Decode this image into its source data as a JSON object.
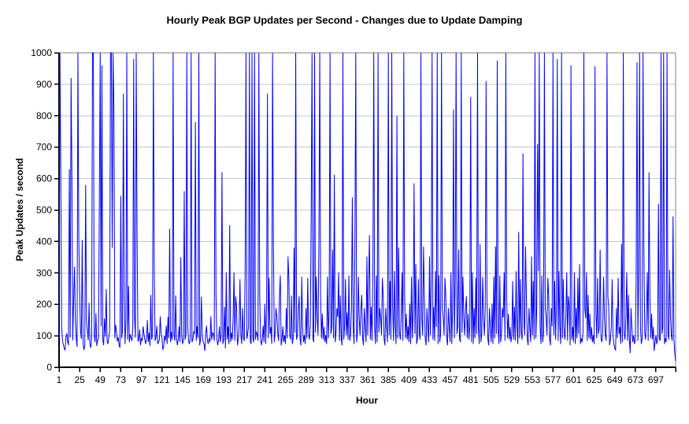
{
  "header": {
    "title": "Hourly Peak BGP Updates per Second - Changes due to Update Damping"
  },
  "chart_data": {
    "type": "line",
    "title": "Hourly Peak BGP Updates per Second - Changes due to Update Damping",
    "xlabel": "Hour",
    "ylabel": "Peak Updates / second",
    "ylim": [
      0,
      1000
    ],
    "hours": 720,
    "x_start": 1,
    "grid": "horizontal",
    "legend": "none",
    "y_ticks": [
      0,
      100,
      200,
      300,
      400,
      500,
      600,
      700,
      800,
      900,
      1000
    ],
    "x_tick_hours": [
      1,
      25,
      49,
      73,
      97,
      121,
      145,
      169,
      193,
      217,
      241,
      265,
      289,
      313,
      337,
      361,
      385,
      409,
      433,
      457,
      481,
      505,
      529,
      553,
      577,
      601,
      625,
      649,
      673,
      697
    ],
    "line_color": "#0000ff",
    "gridline_color": "#c6c6c6",
    "border_color": "#808080",
    "axis_color": "#000000",
    "background_color": "#ffffff",
    "series": [
      {
        "name": "peak-updates-per-second",
        "color": "#0000ff",
        "values": [
          90,
          1000,
          620,
          130,
          85,
          72,
          60,
          55,
          95,
          108,
          82,
          70,
          630,
          95,
          920,
          600,
          86,
          215,
          320,
          150,
          92,
          65,
          1000,
          410,
          235,
          115,
          90,
          405,
          75,
          55,
          68,
          580,
          145,
          118,
          86,
          205,
          74,
          62,
          92,
          1000,
          1000,
          105,
          80,
          172,
          68,
          86,
          92,
          540,
          1000,
          130,
          960,
          88,
          70,
          155,
          98,
          248,
          85,
          74,
          95,
          115,
          1000,
          1000,
          380,
          1000,
          815,
          92,
          135,
          112,
          82,
          96,
          70,
          62,
          545,
          92,
          118,
          870,
          225,
          74,
          148,
          1000,
          88,
          258,
          80,
          105,
          92,
          84,
          126,
          980,
          162,
          94,
          1000,
          415,
          82,
          88,
          120,
          70,
          93,
          84,
          130,
          106,
          88,
          74,
          92,
          150,
          80,
          110,
          68,
          230,
          88,
          102,
          1000,
          310,
          84,
          96,
          132,
          74,
          80,
          88,
          162,
          106,
          94,
          56,
          64,
          100,
          84,
          132,
          74,
          160,
          92,
          440,
          80,
          112,
          88,
          1000,
          106,
          84,
          228,
          92,
          70,
          88,
          130,
          80,
          350,
          102,
          74,
          86,
          560,
          88,
          106,
          1000,
          132,
          84,
          74,
          92,
          1000,
          80,
          88,
          112,
          106,
          780,
          84,
          130,
          92,
          1000,
          70,
          88,
          225,
          102,
          80,
          74,
          52,
          106,
          132,
          84,
          74,
          92,
          80,
          162,
          88,
          110,
          106,
          84,
          1000,
          232,
          92,
          70,
          88,
          130,
          80,
          102,
          620,
          74,
          88,
          192,
          60,
          302,
          88,
          130,
          74,
          452,
          80,
          110,
          88,
          156,
          302,
          84,
          226,
          192,
          70,
          88,
          128,
          280,
          102,
          74,
          188,
          92,
          84,
          315,
          1000,
          90,
          106,
          130,
          1000,
          84,
          74,
          1000,
          92,
          80,
          1000,
          88,
          112,
          106,
          84,
          1000,
          230,
          92,
          70,
          88,
          132,
          80,
          202,
          74,
          188,
          870,
          92,
          284,
          106,
          128,
          74,
          1000,
          392,
          80,
          110,
          188,
          160,
          106,
          84,
          226,
          292,
          70,
          88,
          130,
          80,
          102,
          74,
          188,
          92,
          352,
          284,
          102,
          88,
          228,
          74,
          92,
          380,
          110,
          1000,
          88,
          102,
          184,
          226,
          92,
          70,
          288,
          130,
          80,
          102,
          74,
          188,
          92,
          284,
          106,
          88,
          132,
          474,
          1000,
          92,
          80,
          1000,
          110,
          288,
          158,
          102,
          384,
          1000,
          230,
          92,
          170,
          88,
          128,
          80,
          102,
          74,
          288,
          92,
          184,
          1000,
          106,
          128,
          374,
          92,
          612,
          80,
          110,
          188,
          160,
          302,
          84,
          228,
          92,
          70,
          1000,
          88,
          130,
          280,
          102,
          174,
          88,
          292,
          84,
          106,
          188,
          540,
          128,
          74,
          392,
          1000,
          80,
          110,
          288,
          156,
          102,
          184,
          230,
          92,
          70,
          188,
          128,
          80,
          352,
          102,
          274,
          420,
          88,
          192,
          84,
          306,
          1000,
          128,
          74,
          292,
          80,
          1000,
          110,
          188,
          158,
          102,
          284,
          226,
          92,
          70,
          188,
          130,
          80,
          1000,
          102,
          274,
          88,
          1000,
          192,
          84,
          306,
          128,
          74,
          800,
          92,
          380,
          110,
          88,
          160,
          302,
          84,
          1000,
          228,
          92,
          170,
          88,
          130,
          80,
          202,
          74,
          288,
          92,
          184,
          585,
          106,
          328,
          74,
          92,
          280,
          110,
          88,
          1000,
          156,
          102,
          384,
          226,
          92,
          70,
          188,
          128,
          80,
          352,
          102,
          274,
          1000,
          88,
          192,
          84,
          306,
          128,
          1000,
          74,
          292,
          80,
          110,
          1000,
          188,
          158,
          102,
          284,
          230,
          92,
          70,
          188,
          128,
          80,
          302,
          74,
          188,
          820,
          92,
          284,
          1000,
          106,
          128,
          374,
          92,
          80,
          1000,
          110,
          288,
          160,
          102,
          184,
          226,
          92,
          170,
          88,
          130,
          860,
          80,
          302,
          74,
          188,
          92,
          284,
          106,
          1000,
          128,
          74,
          392,
          80,
          110,
          288,
          156,
          102,
          184,
          910,
          228,
          92,
          70,
          188,
          128,
          80,
          202,
          74,
          288,
          92,
          384,
          106,
          975,
          128,
          74,
          292,
          80,
          110,
          188,
          158,
          302,
          84,
          1000,
          230,
          92,
          170,
          88,
          128,
          80,
          102,
          274,
          88,
          192,
          84,
          306,
          128,
          74,
          430,
          92,
          280,
          110,
          88,
          680,
          156,
          102,
          384,
          226,
          92,
          70,
          188,
          128,
          80,
          352,
          102,
          274,
          88,
          1000,
          92,
          184,
          710,
          306,
          1000,
          128,
          74,
          292,
          80,
          110,
          1000,
          188,
          158,
          102,
          284,
          228,
          92,
          70,
          188,
          130,
          1000,
          102,
          274,
          88,
          192,
          980,
          84,
          306,
          128,
          74,
          1000,
          92,
          280,
          110,
          88,
          160,
          302,
          84,
          226,
          192,
          70,
          960,
          88,
          128,
          80,
          302,
          74,
          188,
          92,
          284,
          106,
          328,
          74,
          92,
          80,
          110,
          1000,
          188,
          156,
          302,
          84,
          230,
          92,
          170,
          88,
          128,
          80,
          102,
          74,
          957,
          188,
          92,
          284,
          106,
          128,
          374,
          92,
          80,
          110,
          288,
          160,
          102,
          84,
          1000,
          226,
          192,
          70,
          88,
          128,
          280,
          102,
          74,
          60,
          55,
          188,
          92,
          284,
          106,
          128,
          74,
          392,
          80,
          1000,
          110,
          88,
          156,
          302,
          84,
          230,
          92,
          45,
          188,
          128,
          80,
          102,
          74,
          88,
          292,
          970,
          84,
          306,
          1000,
          128,
          74,
          92,
          1000,
          380,
          110,
          88,
          158,
          302,
          84,
          620,
          228,
          92,
          170,
          88,
          128,
          52,
          80,
          102,
          74,
          88,
          520,
          92,
          84,
          1000,
          106,
          128,
          1000,
          74,
          92,
          80,
          1000,
          110,
          88,
          310,
          160,
          102,
          84,
          480,
          92,
          45,
          20
        ]
      }
    ]
  }
}
